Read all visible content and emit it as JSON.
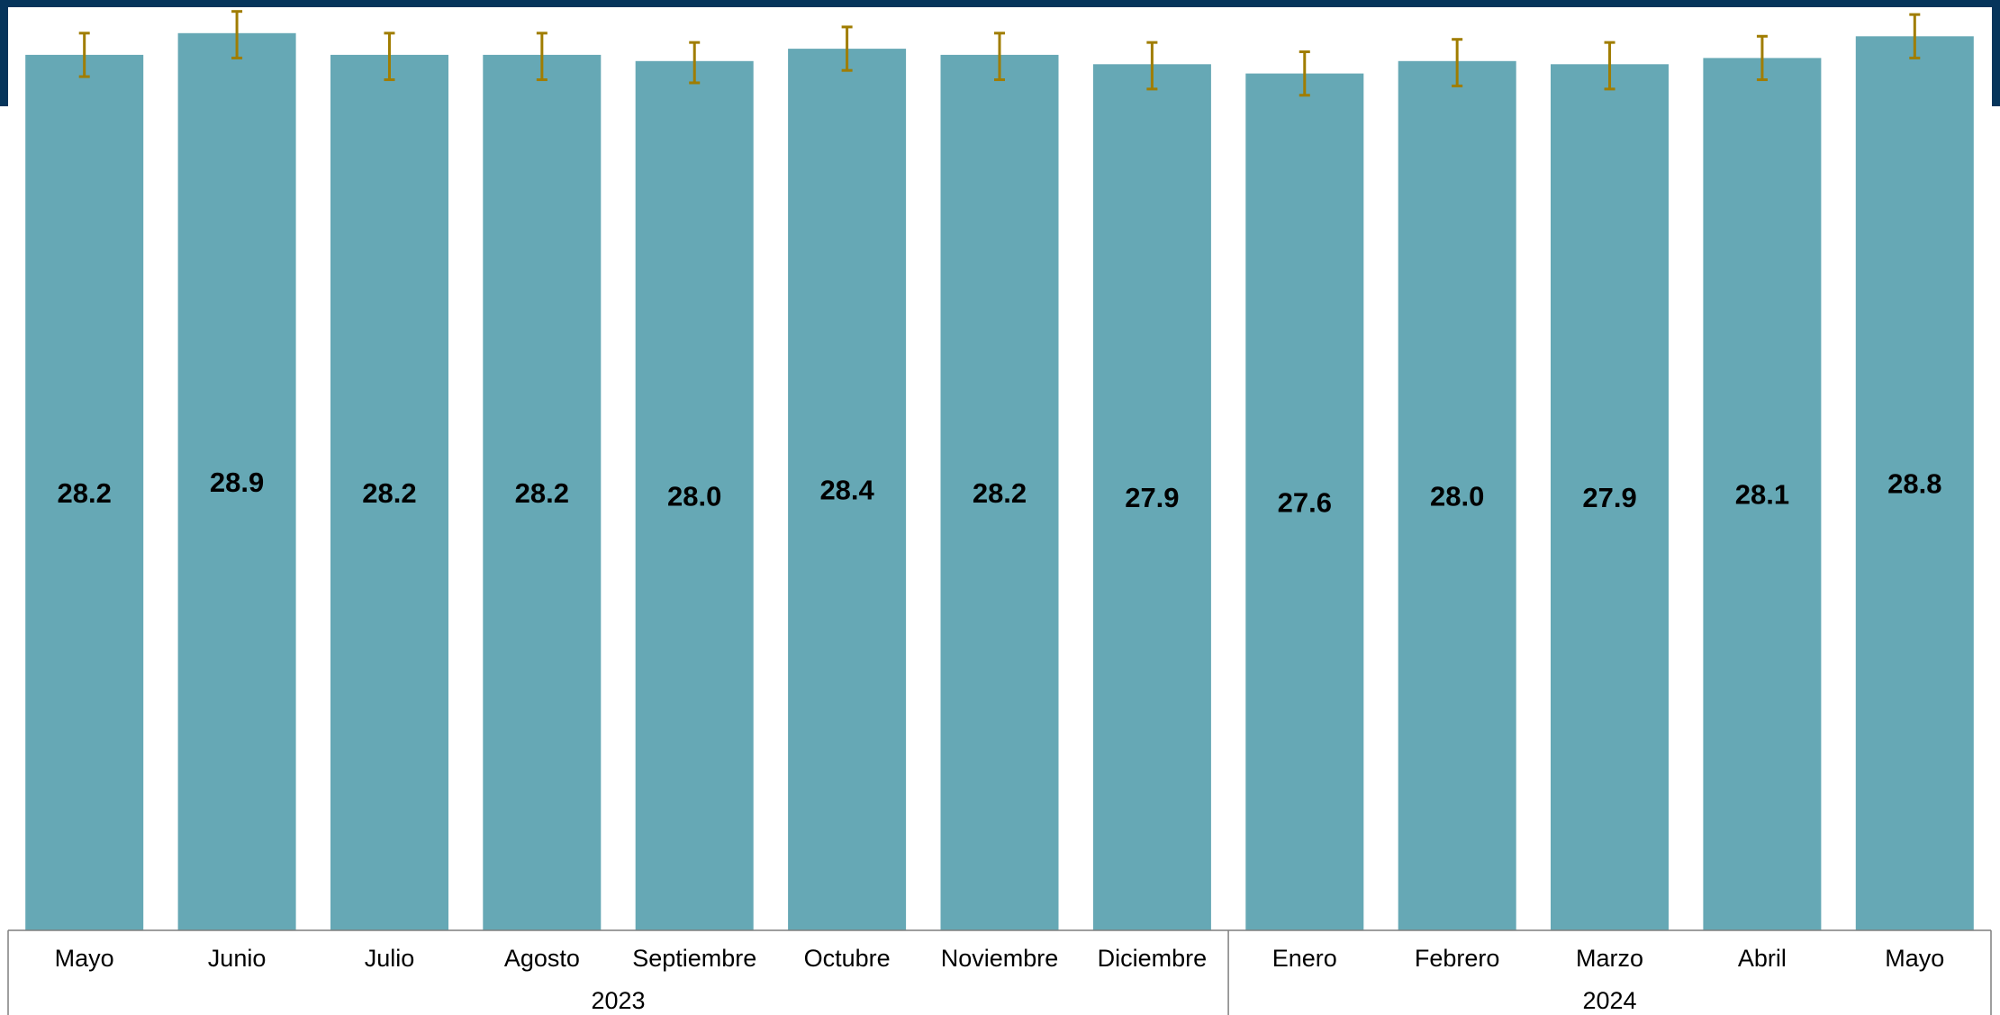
{
  "chart_data": {
    "type": "bar",
    "title": "",
    "xlabel": "",
    "ylabel": "",
    "categories": [
      "Mayo",
      "Junio",
      "Julio",
      "Agosto",
      "Septiembre",
      "Octubre",
      "Noviembre",
      "Diciembre",
      "Enero",
      "Febrero",
      "Marzo",
      "Abril",
      "Mayo"
    ],
    "values": [
      28.2,
      28.9,
      28.2,
      28.2,
      28.0,
      28.4,
      28.2,
      27.9,
      27.6,
      28.0,
      27.9,
      28.1,
      28.8
    ],
    "value_labels": [
      "28.2",
      "28.9",
      "28.2",
      "28.2",
      "28.0",
      "28.4",
      "28.2",
      "27.9",
      "27.6",
      "28.0",
      "27.9",
      "28.1",
      "28.8"
    ],
    "error_low": [
      27.5,
      28.1,
      27.4,
      27.4,
      27.3,
      27.7,
      27.4,
      27.1,
      26.9,
      27.2,
      27.1,
      27.4,
      28.1
    ],
    "error_high": [
      28.9,
      29.6,
      28.9,
      28.9,
      28.6,
      29.1,
      28.9,
      28.6,
      28.3,
      28.7,
      28.6,
      28.8,
      29.5
    ],
    "groups": [
      {
        "label": "2023",
        "start": 0,
        "end": 7
      },
      {
        "label": "2024",
        "start": 8,
        "end": 12
      }
    ],
    "ylim": [
      0,
      30
    ],
    "grid": false,
    "legend": "none",
    "colors": {
      "bar": "#66a8b5",
      "error_bar": "#a07d00",
      "frame": "#06355b",
      "axis_line": "#7f7f7f"
    }
  }
}
